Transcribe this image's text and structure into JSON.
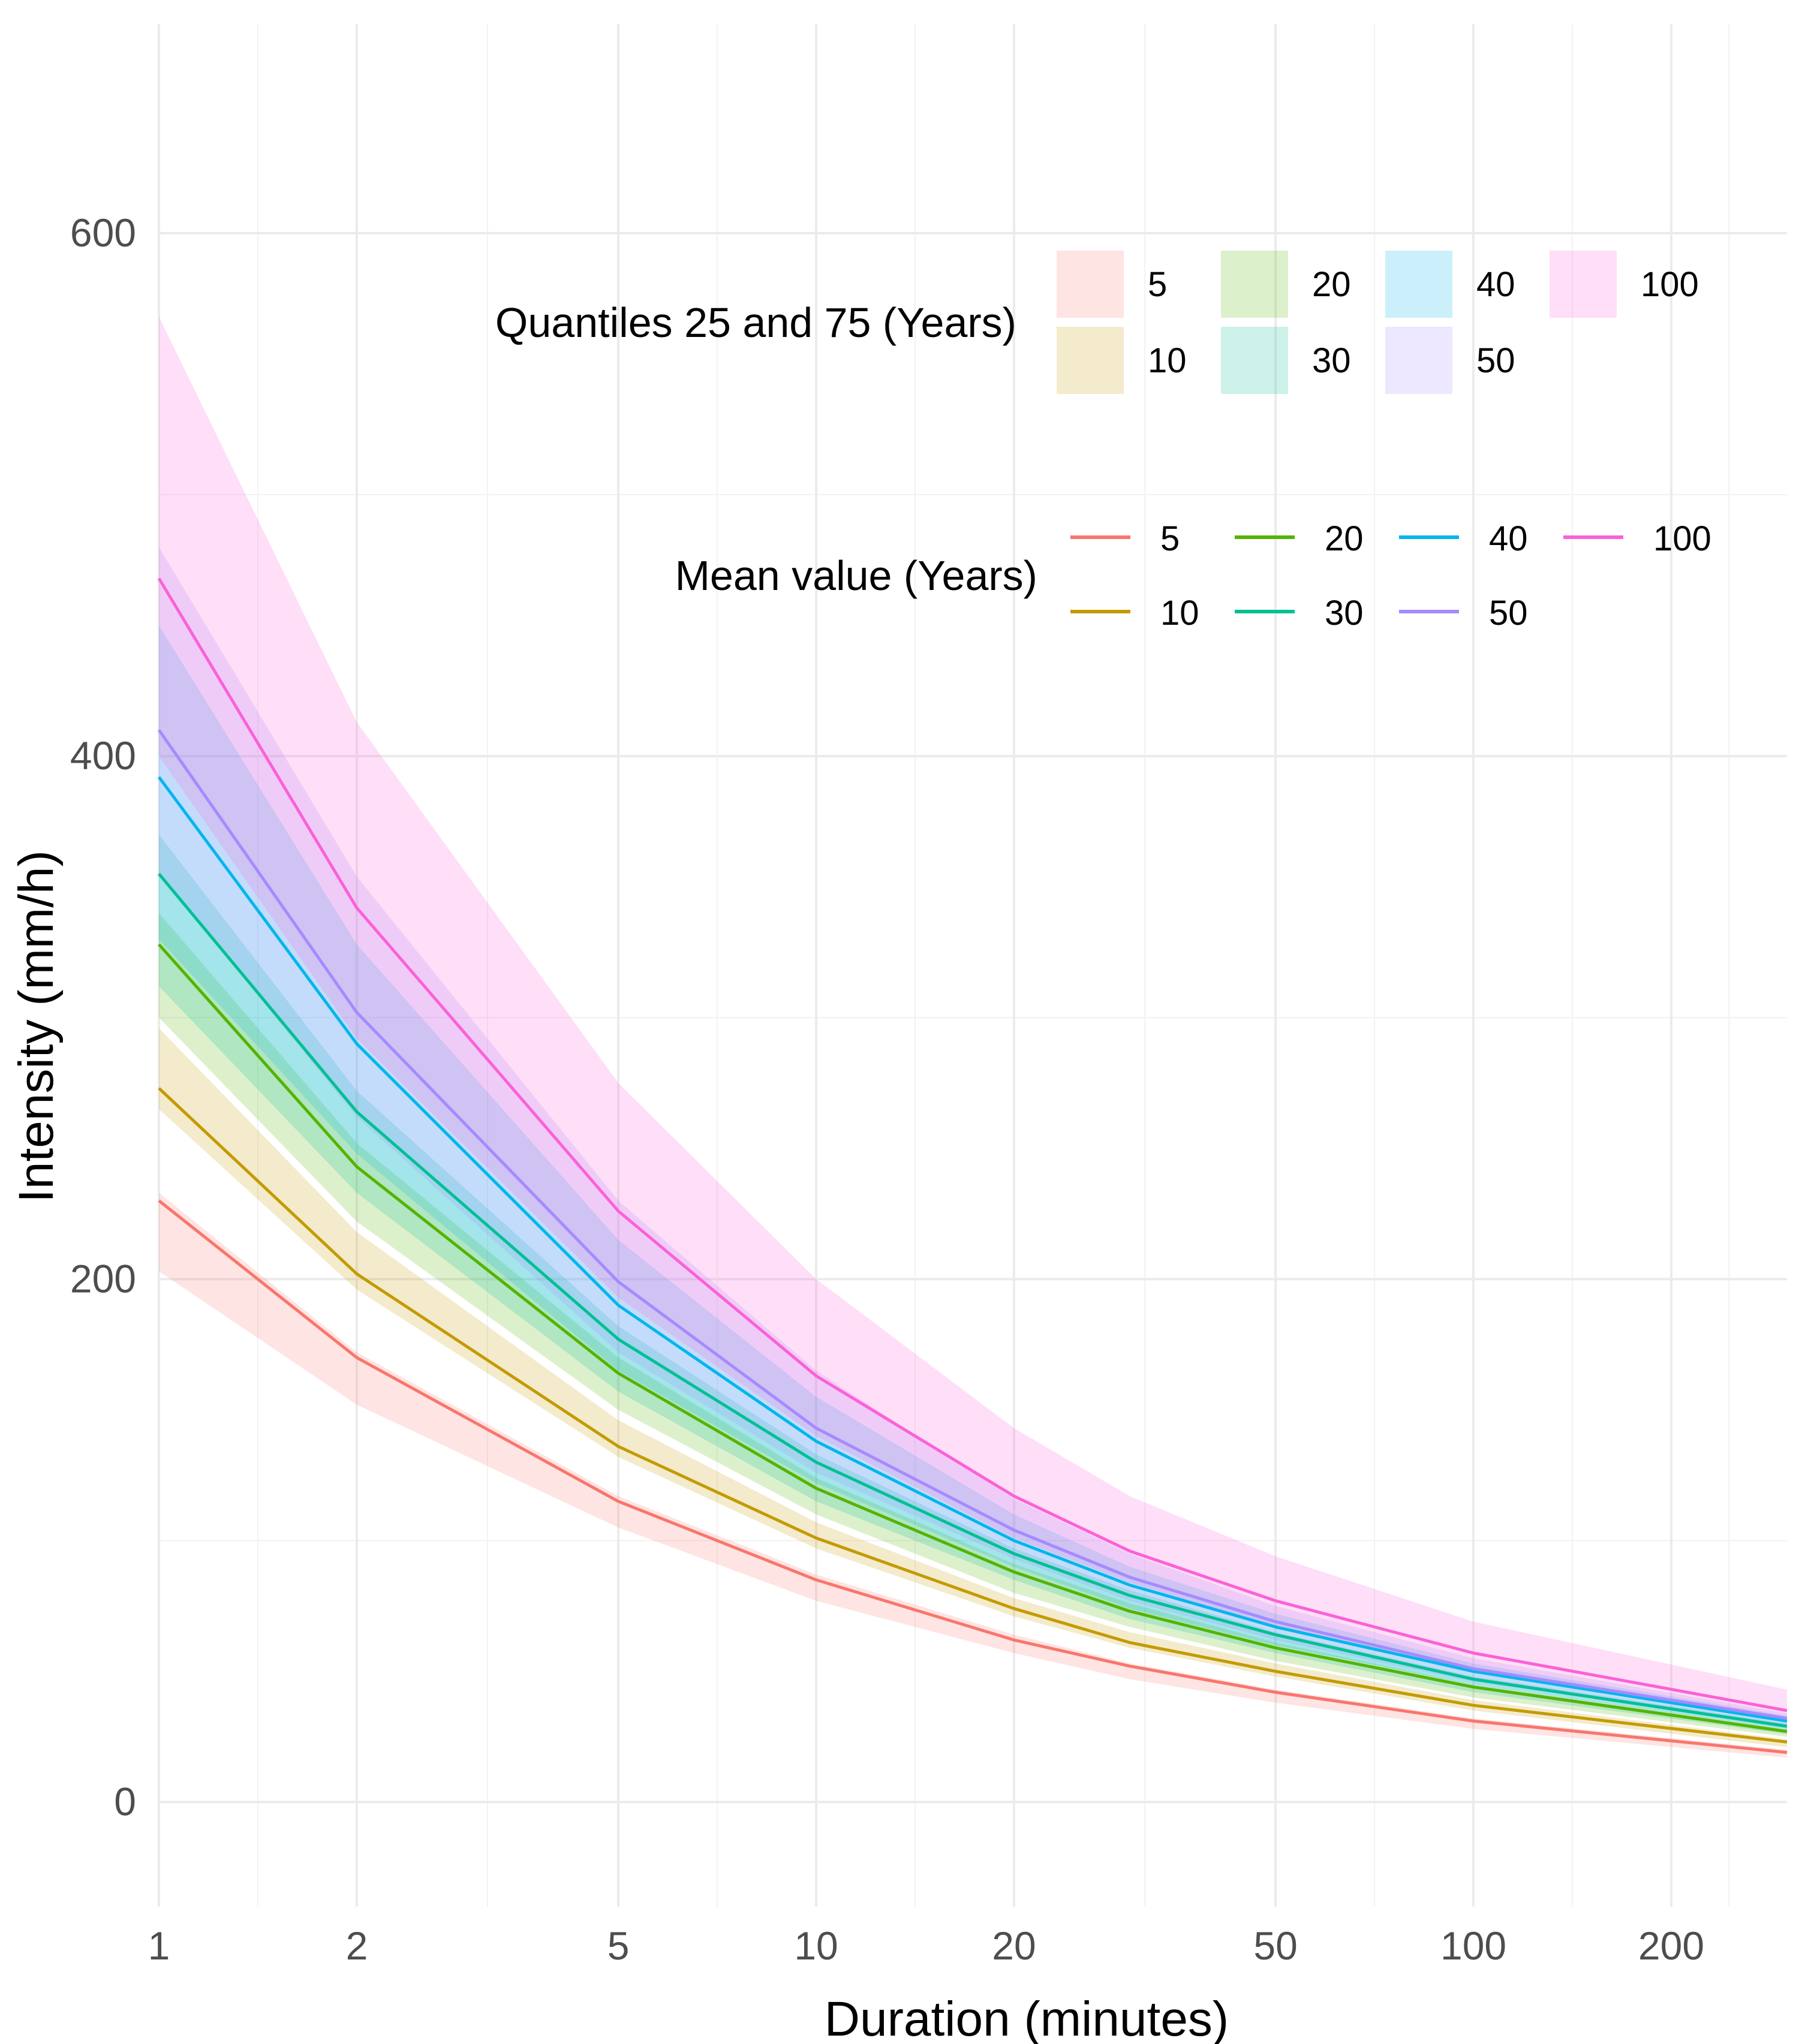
{
  "chart_data": {
    "type": "line",
    "xlabel": "Duration (minutes)",
    "ylabel": "Intensity (mm/h)",
    "x_scale": "log",
    "xlim": [
      1,
      300
    ],
    "ylim": [
      -40,
      680
    ],
    "x_ticks": [
      1,
      2,
      5,
      10,
      20,
      50,
      100,
      200
    ],
    "x_tick_labels": [
      "1",
      "2",
      "5",
      "10",
      "20",
      "50",
      "100",
      "200"
    ],
    "y_ticks": [
      0,
      200,
      400,
      600
    ],
    "y_tick_labels": [
      "0",
      "200",
      "400",
      "600"
    ],
    "x_minor_grid": [
      1.414,
      3.162,
      7.071,
      14.142,
      31.623,
      70.711,
      141.421,
      244.949
    ],
    "y_minor_grid": [
      100,
      300,
      500
    ],
    "grid": true,
    "x": [
      1,
      2,
      5,
      10,
      20,
      30,
      50,
      100,
      300
    ],
    "legend_placement": "top-right",
    "legend_quantile_title": "Quantiles 25 and 75 (Years)",
    "legend_mean_title": "Mean value (Years)",
    "series": [
      {
        "name": "5",
        "color": "#F8766D",
        "mean": [
          230,
          170,
          115,
          85,
          62,
          52,
          42,
          31,
          19
        ],
        "q25": [
          203,
          152,
          105,
          77,
          57,
          47,
          38,
          28,
          17
        ],
        "q75": [
          233,
          172,
          117,
          87,
          64,
          53,
          43,
          32,
          20
        ]
      },
      {
        "name": "10",
        "color": "#C49A00",
        "mean": [
          273,
          202,
          136,
          101,
          74,
          61,
          50,
          37,
          23
        ],
        "q25": [
          265,
          196,
          132,
          97,
          71,
          59,
          48,
          35,
          21
        ],
        "q75": [
          296,
          218,
          146,
          107,
          78,
          65,
          53,
          39,
          24
        ]
      },
      {
        "name": "20",
        "color": "#53B400",
        "mean": [
          328,
          243,
          164,
          120,
          88,
          73,
          59,
          44,
          27
        ],
        "q25": [
          300,
          222,
          150,
          110,
          80,
          67,
          54,
          40,
          25
        ],
        "q75": [
          340,
          252,
          170,
          124,
          91,
          76,
          61,
          45,
          28
        ]
      },
      {
        "name": "30",
        "color": "#00C094",
        "mean": [
          355,
          264,
          177,
          130,
          95,
          79,
          64,
          47,
          29
        ],
        "q25": [
          312,
          233,
          157,
          115,
          85,
          70,
          57,
          42,
          26
        ],
        "q75": [
          370,
          272,
          182,
          133,
          97,
          81,
          65,
          48,
          30
        ]
      },
      {
        "name": "40",
        "color": "#00B6EB",
        "mean": [
          392,
          290,
          190,
          138,
          100,
          83,
          67,
          50,
          31
        ],
        "q25": [
          330,
          248,
          165,
          122,
          90,
          74,
          60,
          45,
          28
        ],
        "q75": [
          450,
          328,
          215,
          155,
          110,
          90,
          72,
          53,
          33
        ]
      },
      {
        "name": "50",
        "color": "#A58AFF",
        "mean": [
          410,
          302,
          199,
          143,
          104,
          86,
          69,
          51,
          32
        ],
        "q25": [
          355,
          262,
          172,
          126,
          93,
          77,
          62,
          46,
          29
        ],
        "q75": [
          480,
          354,
          230,
          165,
          116,
          95,
          75,
          55,
          34
        ]
      },
      {
        "name": "100",
        "color": "#FB61D7",
        "mean": [
          468,
          342,
          226,
          163,
          117,
          96,
          77,
          57,
          35
        ],
        "q25": [
          400,
          292,
          193,
          140,
          101,
          84,
          67,
          50,
          31
        ],
        "q75": [
          568,
          413,
          275,
          200,
          143,
          117,
          94,
          69,
          43
        ]
      }
    ]
  }
}
